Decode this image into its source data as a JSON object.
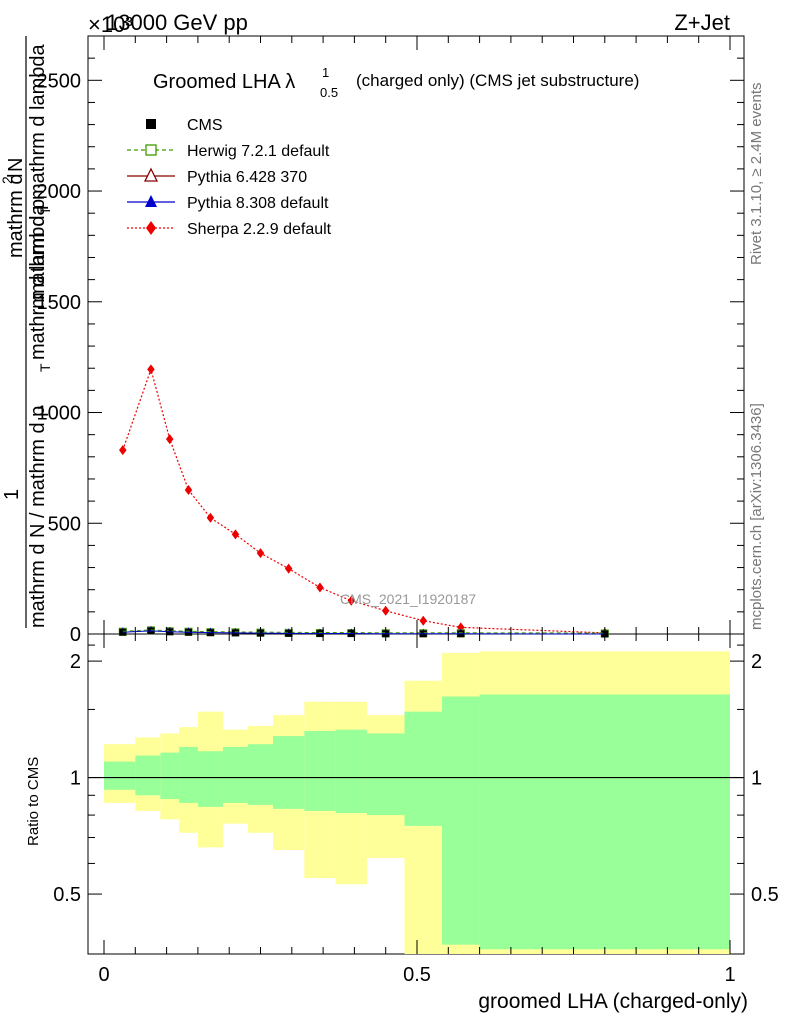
{
  "header": {
    "left": "13000 GeV pp",
    "right": "Z+Jet",
    "exponent": "×10³"
  },
  "side": {
    "rivet": "Rivet 3.1.10, ≥ 2.4M events",
    "mcplots": "mcplots.cern.ch [arXiv:1306.3436]"
  },
  "watermark": "CMS_2021_I1920187",
  "chart_data": [
    {
      "type": "line",
      "title": "Groomed LHA λ",
      "title_sup": "1",
      "title_sub": "0.5",
      "title_suffix": "(charged only) (CMS jet substructure)",
      "xlabel": "groomed LHA (charged-only)",
      "ylabel_numer": "1",
      "ylabel_denom_top": "mathrm d N / mathrm d p",
      "ylabel_denom_sub": "T",
      "ylabel_denom_rest": "mathrm d lambda",
      "ylabel_top_part": "mathrm d",
      "ylabel_top_sup": "2",
      "ylabel_top_rest": "N",
      "ylabel_bottom_part": "mathrm d p",
      "ylabel_bottom_sub": "T",
      "ylabel_bottom_rest": "mathrm d lambda",
      "ylim": [
        0,
        2700
      ],
      "xlim": [
        0,
        1
      ],
      "yticks": [
        "0",
        "500",
        "1000",
        "1500",
        "2000",
        "2500"
      ],
      "ytick_values": [
        0,
        500,
        1000,
        1500,
        2000,
        2500
      ],
      "legend": [
        {
          "name": "CMS",
          "color": "#000000",
          "marker": "filled-square",
          "line": "none"
        },
        {
          "name": "Herwig 7.2.1 default",
          "color": "#3d9b00",
          "marker": "open-square",
          "line": "dashed"
        },
        {
          "name": "Pythia 6.428 370",
          "color": "#8b0000",
          "marker": "open-triangle",
          "line": "solid"
        },
        {
          "name": "Pythia 8.308 default",
          "color": "#0000cc",
          "marker": "filled-triangle",
          "line": "solid"
        },
        {
          "name": "Sherpa 2.2.9 default",
          "color": "#ee0000",
          "marker": "filled-diamond",
          "line": "dotted"
        }
      ],
      "series": [
        {
          "name": "Sherpa 2.2.9 default",
          "x": [
            0.03,
            0.075,
            0.105,
            0.135,
            0.17,
            0.21,
            0.25,
            0.295,
            0.345,
            0.395,
            0.45,
            0.51,
            0.57,
            0.8
          ],
          "y": [
            830,
            1195,
            880,
            650,
            525,
            450,
            365,
            295,
            210,
            150,
            105,
            60,
            30,
            5
          ]
        },
        {
          "name": "CMS",
          "x": [
            0.03,
            0.075,
            0.105,
            0.135,
            0.17,
            0.21,
            0.25,
            0.295,
            0.345,
            0.395,
            0.45,
            0.51,
            0.57,
            0.8
          ],
          "y": [
            8,
            14,
            10,
            8,
            6,
            5,
            4,
            3,
            2,
            2,
            1,
            1,
            1,
            0
          ]
        }
      ]
    },
    {
      "type": "area",
      "ylabel": "Ratio to CMS",
      "xticks": [
        "0",
        "0.5",
        "1"
      ],
      "xtick_values": [
        0,
        0.5,
        1
      ],
      "yticks": [
        "0.5",
        "1",
        "2"
      ],
      "ytick_values": [
        0.5,
        1,
        2
      ],
      "ylim": [
        0.35,
        2.35
      ],
      "scale": "log",
      "bins": [
        0,
        0.05,
        0.09,
        0.12,
        0.15,
        0.19,
        0.23,
        0.27,
        0.32,
        0.37,
        0.42,
        0.48,
        0.54,
        0.6,
        1.0
      ],
      "stat_band": {
        "name": "stat",
        "color": "#99ff99",
        "lower": [
          0.93,
          0.9,
          0.88,
          0.86,
          0.84,
          0.86,
          0.85,
          0.83,
          0.82,
          0.81,
          0.8,
          0.75,
          0.37,
          0.36
        ],
        "upper": [
          1.1,
          1.14,
          1.16,
          1.2,
          1.17,
          1.2,
          1.22,
          1.28,
          1.32,
          1.33,
          1.3,
          1.48,
          1.62,
          1.64
        ]
      },
      "total_band": {
        "name": "total",
        "color": "#ffff99",
        "lower": [
          0.86,
          0.82,
          0.78,
          0.72,
          0.66,
          0.76,
          0.72,
          0.65,
          0.55,
          0.53,
          0.62,
          0.33,
          0.33,
          0.33
        ],
        "upper": [
          1.22,
          1.27,
          1.3,
          1.35,
          1.48,
          1.33,
          1.36,
          1.45,
          1.57,
          1.57,
          1.45,
          1.78,
          2.1,
          2.12
        ]
      },
      "reference": 1
    }
  ]
}
